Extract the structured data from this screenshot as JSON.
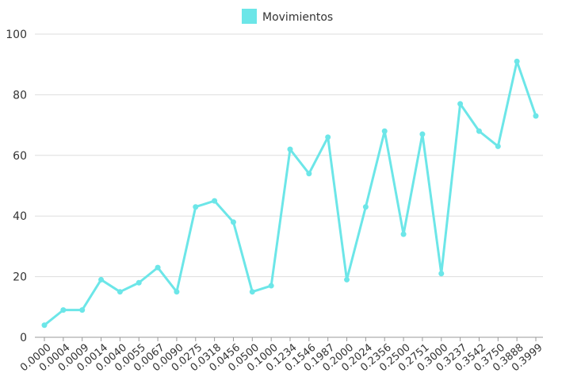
{
  "chart_data": {
    "type": "line",
    "title": "",
    "xlabel": "",
    "ylabel": "",
    "legend_position": "top-center",
    "grid": true,
    "ylim": [
      0,
      100
    ],
    "yticks": [
      "0",
      "20",
      "40",
      "60",
      "80",
      "100"
    ],
    "categories": [
      "0.0000",
      "0.0004",
      "0.0009",
      "0.0014",
      "0.0040",
      "0.0055",
      "0.0067",
      "0.0090",
      "0.0275",
      "0.0318",
      "0.0456",
      "0.0500",
      "0.1000",
      "0.1234",
      "0.1546",
      "0.1987",
      "0.2000",
      "0.2024",
      "0.2356",
      "0.2500",
      "0.2751",
      "0.3000",
      "0.3237",
      "0.3542",
      "0.3750",
      "0.3888",
      "0.3999"
    ],
    "series": [
      {
        "name": "Movimientos",
        "color": "#6ce6e8",
        "values": [
          4,
          9,
          9,
          19,
          15,
          18,
          23,
          15,
          43,
          45,
          38,
          15,
          17,
          62,
          54,
          66,
          19,
          43,
          68,
          34,
          67,
          21,
          77,
          68,
          63,
          91,
          73
        ]
      }
    ]
  }
}
